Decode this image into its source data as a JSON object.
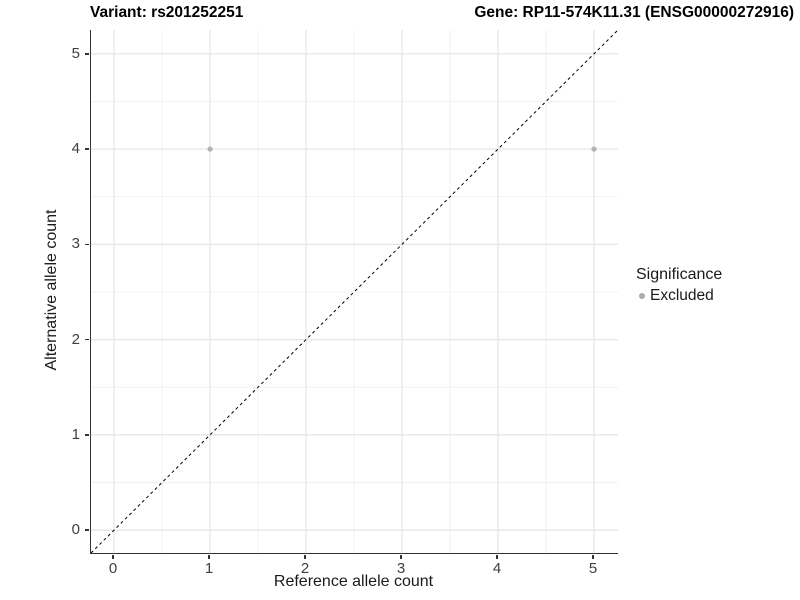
{
  "titles": {
    "left": "Variant: rs201252251",
    "right": "Gene: RP11-574K11.31 (ENSG00000272916)"
  },
  "chart_data": {
    "type": "scatter",
    "title_left": "Variant: rs201252251",
    "title_right": "Gene: RP11-574K11.31 (ENSG00000272916)",
    "xlabel": "Reference allele count",
    "ylabel": "Alternative allele count",
    "xlim": [
      -0.24,
      5.25
    ],
    "ylim": [
      -0.24,
      5.25
    ],
    "xticks": [
      0,
      1,
      2,
      3,
      4,
      5
    ],
    "yticks": [
      0,
      1,
      2,
      3,
      4,
      5
    ],
    "minor_ticks": [
      0.5,
      1.5,
      2.5,
      3.5,
      4.5
    ],
    "grid": true,
    "series": [
      {
        "name": "Excluded",
        "color": "#b3b3b3",
        "points": [
          {
            "x": 1,
            "y": 4
          },
          {
            "x": 5,
            "y": 4
          }
        ]
      }
    ],
    "reference_line": {
      "type": "diagonal-identity",
      "style": "dashed",
      "color": "#000000"
    },
    "legend": {
      "title": "Significance",
      "position": "right",
      "entries": [
        {
          "label": "Excluded",
          "color": "#aaaaaa"
        }
      ]
    },
    "colors": {
      "axis_line": "#333333",
      "major_grid": "#e4e4e4",
      "minor_grid": "#f1f1f1",
      "tick_text": "#404040",
      "background": "#ffffff"
    }
  }
}
